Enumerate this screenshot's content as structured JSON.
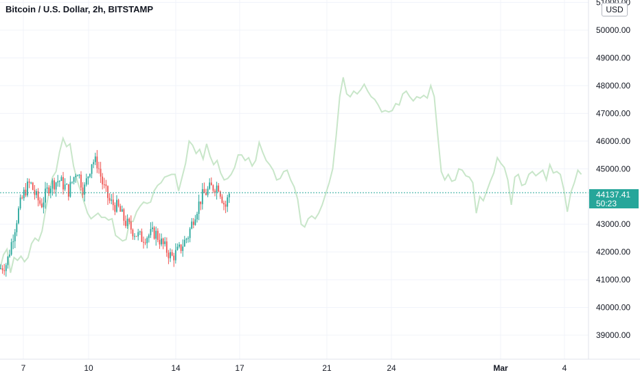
{
  "header": {
    "symbol_title": "Bitcoin / U.S. Dollar, 2h, BITSTAMP"
  },
  "price_axis": {
    "currency_label": "USD",
    "ticks": [
      "51000.00",
      "50000.00",
      "49000.00",
      "48000.00",
      "47000.00",
      "46000.00",
      "45000.00",
      "43000.00",
      "42000.00",
      "41000.00",
      "40000.00",
      "39000.00"
    ]
  },
  "time_axis": {
    "ticks": [
      {
        "label": "7",
        "bold": false
      },
      {
        "label": "10",
        "bold": false
      },
      {
        "label": "14",
        "bold": false
      },
      {
        "label": "17",
        "bold": false
      },
      {
        "label": "21",
        "bold": false
      },
      {
        "label": "24",
        "bold": false
      },
      {
        "label": "Mar",
        "bold": true
      },
      {
        "label": "4",
        "bold": false
      }
    ]
  },
  "last_price": {
    "value": "44137.41",
    "countdown": "50:23"
  },
  "colors": {
    "up": "#26a69a",
    "down": "#ef5350",
    "projection": "#c8e6c9",
    "grid": "#f0f3fa",
    "last_price_line": "#26a69a"
  },
  "chart_data": {
    "type": "candlestick",
    "symbol": "Bitcoin / U.S. Dollar",
    "interval": "2h",
    "exchange": "BITSTAMP",
    "y_axis": {
      "min": 39000,
      "max": 51000,
      "unit": "USD"
    },
    "x_axis_labels": [
      "7",
      "10",
      "14",
      "17",
      "21",
      "24",
      "Mar",
      "4"
    ],
    "last_price": 44137.41,
    "projection_series": [
      [
        0,
        41400
      ],
      [
        1,
        41900
      ],
      [
        2,
        42100
      ],
      [
        3,
        41250
      ],
      [
        4,
        41800
      ],
      [
        5,
        41700
      ],
      [
        6,
        41850
      ],
      [
        7,
        41650
      ],
      [
        8,
        41800
      ],
      [
        9,
        42300
      ],
      [
        10,
        42500
      ],
      [
        11,
        42400
      ],
      [
        12,
        42750
      ],
      [
        13,
        43500
      ],
      [
        14,
        44150
      ],
      [
        15,
        44700
      ],
      [
        16,
        44900
      ],
      [
        17,
        45600
      ],
      [
        18,
        46100
      ],
      [
        19,
        45800
      ],
      [
        20,
        45900
      ],
      [
        21,
        45100
      ],
      [
        22,
        44600
      ],
      [
        23,
        44200
      ],
      [
        24,
        43800
      ],
      [
        25,
        43400
      ],
      [
        26,
        43200
      ],
      [
        27,
        43300
      ],
      [
        28,
        43400
      ],
      [
        29,
        43250
      ],
      [
        30,
        43250
      ],
      [
        31,
        43150
      ],
      [
        32,
        43200
      ],
      [
        33,
        42600
      ],
      [
        34,
        42500
      ],
      [
        35,
        42400
      ],
      [
        36,
        42450
      ],
      [
        37,
        43100
      ],
      [
        38,
        43100
      ],
      [
        39,
        43450
      ],
      [
        40,
        43650
      ],
      [
        41,
        43800
      ],
      [
        42,
        43750
      ],
      [
        43,
        43800
      ],
      [
        44,
        44200
      ],
      [
        45,
        44400
      ],
      [
        46,
        44500
      ],
      [
        47,
        44700
      ],
      [
        48,
        44750
      ],
      [
        49,
        44800
      ],
      [
        50,
        44800
      ],
      [
        51,
        44200
      ],
      [
        52,
        44700
      ],
      [
        53,
        45200
      ],
      [
        54,
        46000
      ],
      [
        55,
        45850
      ],
      [
        56,
        45550
      ],
      [
        57,
        45700
      ],
      [
        58,
        45350
      ],
      [
        59,
        45900
      ],
      [
        60,
        45450
      ],
      [
        61,
        45150
      ],
      [
        62,
        45300
      ],
      [
        63,
        44850
      ],
      [
        64,
        44600
      ],
      [
        65,
        44650
      ],
      [
        66,
        44800
      ],
      [
        67,
        45050
      ],
      [
        68,
        45500
      ],
      [
        69,
        45500
      ],
      [
        70,
        45300
      ],
      [
        71,
        45400
      ],
      [
        72,
        45100
      ],
      [
        73,
        45300
      ],
      [
        74,
        45950
      ],
      [
        75,
        45600
      ],
      [
        76,
        45300
      ],
      [
        77,
        45150
      ],
      [
        78,
        44950
      ],
      [
        79,
        44600
      ],
      [
        80,
        44650
      ],
      [
        81,
        44900
      ],
      [
        82,
        44950
      ],
      [
        83,
        44600
      ],
      [
        84,
        44350
      ],
      [
        85,
        43900
      ],
      [
        86,
        43000
      ],
      [
        87,
        42900
      ],
      [
        88,
        43200
      ],
      [
        89,
        43300
      ],
      [
        90,
        43200
      ],
      [
        91,
        43400
      ],
      [
        92,
        43700
      ],
      [
        93,
        44100
      ],
      [
        94,
        44500
      ],
      [
        95,
        45000
      ],
      [
        96,
        46200
      ],
      [
        97,
        47600
      ],
      [
        98,
        48300
      ],
      [
        99,
        47700
      ],
      [
        100,
        47600
      ],
      [
        101,
        47800
      ],
      [
        102,
        47700
      ],
      [
        103,
        47850
      ],
      [
        104,
        48050
      ],
      [
        105,
        47800
      ],
      [
        106,
        47600
      ],
      [
        107,
        47500
      ],
      [
        108,
        47300
      ],
      [
        109,
        47050
      ],
      [
        110,
        47100
      ],
      [
        111,
        47050
      ],
      [
        112,
        47100
      ],
      [
        113,
        47350
      ],
      [
        114,
        47300
      ],
      [
        115,
        47700
      ],
      [
        116,
        47800
      ],
      [
        117,
        47600
      ],
      [
        118,
        47450
      ],
      [
        119,
        47600
      ],
      [
        120,
        47550
      ],
      [
        121,
        47650
      ],
      [
        122,
        47550
      ],
      [
        123,
        48000
      ],
      [
        124,
        47600
      ],
      [
        125,
        46200
      ],
      [
        126,
        44900
      ],
      [
        127,
        44600
      ],
      [
        128,
        44800
      ],
      [
        129,
        44550
      ],
      [
        130,
        44600
      ],
      [
        131,
        45000
      ],
      [
        132,
        44950
      ],
      [
        133,
        44750
      ],
      [
        134,
        44700
      ],
      [
        135,
        44500
      ],
      [
        136,
        43400
      ],
      [
        137,
        44000
      ],
      [
        138,
        43850
      ],
      [
        139,
        44200
      ],
      [
        140,
        44550
      ],
      [
        141,
        44850
      ],
      [
        142,
        45400
      ],
      [
        143,
        45200
      ],
      [
        144,
        45050
      ],
      [
        145,
        44600
      ],
      [
        146,
        43700
      ],
      [
        147,
        44700
      ],
      [
        148,
        44800
      ],
      [
        149,
        44400
      ],
      [
        150,
        44450
      ],
      [
        151,
        44800
      ],
      [
        152,
        44900
      ],
      [
        153,
        44750
      ],
      [
        154,
        44850
      ],
      [
        155,
        44950
      ],
      [
        156,
        44600
      ],
      [
        157,
        45150
      ],
      [
        158,
        44850
      ],
      [
        159,
        44900
      ],
      [
        160,
        44800
      ],
      [
        161,
        44250
      ],
      [
        162,
        43450
      ],
      [
        163,
        44150
      ],
      [
        164,
        44500
      ],
      [
        165,
        44950
      ],
      [
        166,
        44800
      ]
    ],
    "candles_summary": "2h OHLC candles from the 6th to the 16th; price range approx. 41200 to 46000; last close 44137.41"
  }
}
